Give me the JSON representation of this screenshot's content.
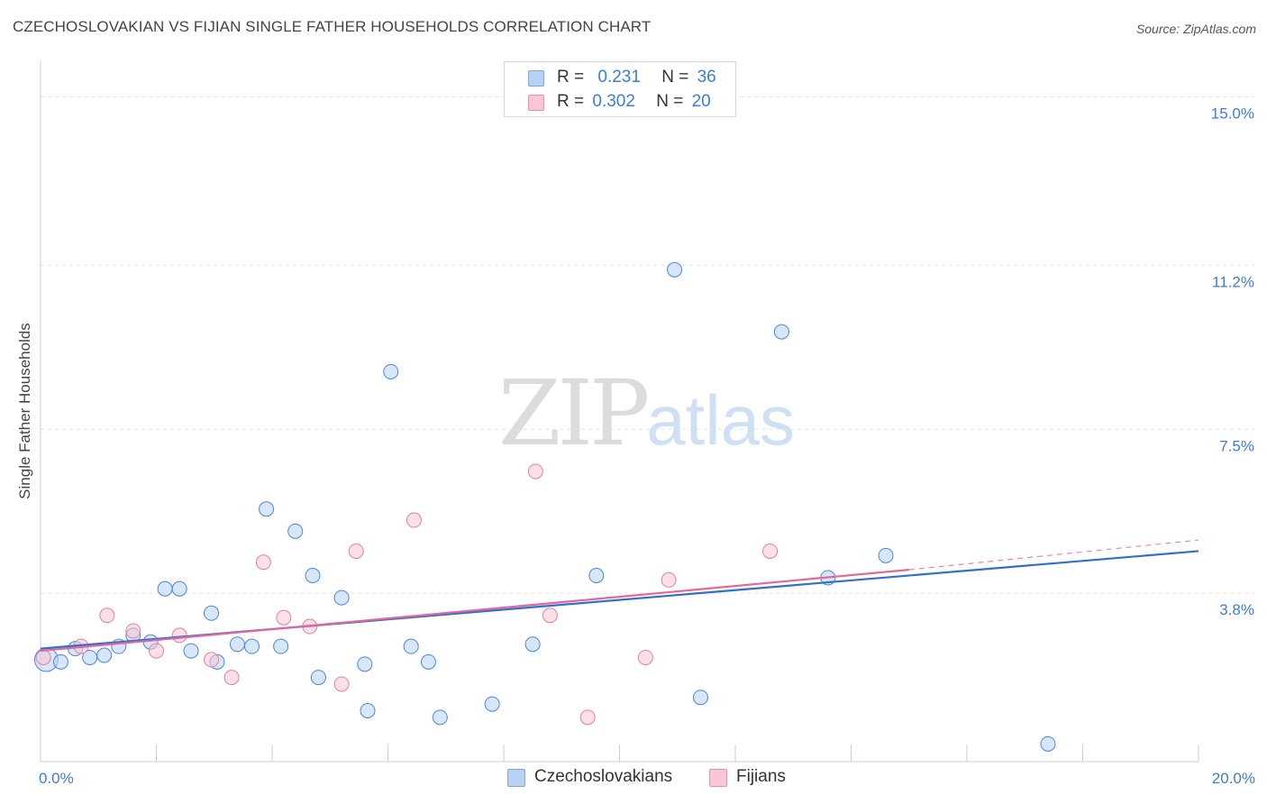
{
  "title": "CZECHOSLOVAKIAN VS FIJIAN SINGLE FATHER HOUSEHOLDS CORRELATION CHART",
  "source": "Source: ZipAtlas.com",
  "watermark": {
    "zip": "ZIP",
    "atlas": "atlas"
  },
  "legend": {
    "rows": [
      {
        "r_label": "R =",
        "r_value": "0.231",
        "n_label": "N =",
        "n_value": "36",
        "color": "#b8d2f5",
        "border": "#7aa7e0"
      },
      {
        "r_label": "R =",
        "r_value": "0.302",
        "n_label": "N =",
        "n_value": "20",
        "color": "#f9c6d6",
        "border": "#e890ab"
      }
    ]
  },
  "bottom_legend": [
    {
      "label": "Czechoslovakians",
      "color": "#b8d2f5",
      "border": "#7aa7e0"
    },
    {
      "label": "Fijians",
      "color": "#f9c6d6",
      "border": "#e890ab"
    }
  ],
  "chart_data": {
    "type": "scatter",
    "ylabel": "Single Father Households",
    "xlim": [
      0,
      20
    ],
    "ylim": [
      0,
      15.6
    ],
    "x_ticks_labels": [
      {
        "value": 0,
        "label": "0.0%"
      },
      {
        "value": 20,
        "label": "20.0%"
      }
    ],
    "y_ticks_labels": [
      {
        "value": 3.8,
        "label": "3.8%"
      },
      {
        "value": 7.5,
        "label": "7.5%"
      },
      {
        "value": 11.2,
        "label": "11.2%"
      },
      {
        "value": 15.0,
        "label": "15.0%"
      }
    ],
    "grid": true,
    "series": [
      {
        "name": "Czechoslovakians",
        "color": "#4a86d8",
        "fill": "rgba(184,210,245,0.55)",
        "trend": {
          "x": [
            0,
            20
          ],
          "y": [
            2.55,
            4.75
          ],
          "color": "#2f6fcf"
        },
        "points": [
          {
            "x": 0.1,
            "y": 2.3,
            "big": true
          },
          {
            "x": 0.35,
            "y": 2.25
          },
          {
            "x": 0.6,
            "y": 2.55
          },
          {
            "x": 0.85,
            "y": 2.35
          },
          {
            "x": 1.1,
            "y": 2.4
          },
          {
            "x": 1.35,
            "y": 2.6
          },
          {
            "x": 1.6,
            "y": 2.85
          },
          {
            "x": 1.9,
            "y": 2.7
          },
          {
            "x": 2.15,
            "y": 3.9
          },
          {
            "x": 2.4,
            "y": 3.9
          },
          {
            "x": 2.6,
            "y": 2.5
          },
          {
            "x": 2.95,
            "y": 3.35
          },
          {
            "x": 3.05,
            "y": 2.25
          },
          {
            "x": 3.4,
            "y": 2.65
          },
          {
            "x": 3.65,
            "y": 2.6
          },
          {
            "x": 3.9,
            "y": 5.7
          },
          {
            "x": 4.15,
            "y": 2.6
          },
          {
            "x": 4.4,
            "y": 5.2
          },
          {
            "x": 4.7,
            "y": 4.2
          },
          {
            "x": 4.8,
            "y": 1.9
          },
          {
            "x": 5.2,
            "y": 3.7
          },
          {
            "x": 5.6,
            "y": 2.2
          },
          {
            "x": 5.65,
            "y": 1.15
          },
          {
            "x": 6.05,
            "y": 8.8
          },
          {
            "x": 6.4,
            "y": 2.6
          },
          {
            "x": 6.7,
            "y": 2.25
          },
          {
            "x": 6.9,
            "y": 1.0
          },
          {
            "x": 7.8,
            "y": 1.3
          },
          {
            "x": 8.5,
            "y": 2.65
          },
          {
            "x": 9.6,
            "y": 4.2
          },
          {
            "x": 10.95,
            "y": 11.1
          },
          {
            "x": 11.4,
            "y": 1.45
          },
          {
            "x": 12.8,
            "y": 9.7
          },
          {
            "x": 13.6,
            "y": 4.15
          },
          {
            "x": 14.6,
            "y": 4.65
          },
          {
            "x": 17.4,
            "y": 0.4
          }
        ]
      },
      {
        "name": "Fijians",
        "color": "#e37fa0",
        "fill": "rgba(249,198,214,0.55)",
        "trend": {
          "x": [
            0,
            15
          ],
          "y": [
            2.5,
            4.33
          ],
          "color": "#e2689a"
        },
        "trend_dashed": {
          "x": [
            15,
            20
          ],
          "y": [
            4.33,
            5.0
          ]
        },
        "points": [
          {
            "x": 0.05,
            "y": 2.35
          },
          {
            "x": 0.7,
            "y": 2.6
          },
          {
            "x": 1.15,
            "y": 3.3
          },
          {
            "x": 1.6,
            "y": 2.95
          },
          {
            "x": 2.0,
            "y": 2.5
          },
          {
            "x": 2.4,
            "y": 2.85
          },
          {
            "x": 2.95,
            "y": 2.3
          },
          {
            "x": 3.3,
            "y": 1.9
          },
          {
            "x": 3.85,
            "y": 4.5
          },
          {
            "x": 4.2,
            "y": 3.25
          },
          {
            "x": 4.65,
            "y": 3.05
          },
          {
            "x": 5.2,
            "y": 1.75
          },
          {
            "x": 5.45,
            "y": 4.75
          },
          {
            "x": 6.45,
            "y": 5.45
          },
          {
            "x": 8.55,
            "y": 6.55
          },
          {
            "x": 8.8,
            "y": 3.3
          },
          {
            "x": 9.45,
            "y": 1.0
          },
          {
            "x": 10.45,
            "y": 2.35
          },
          {
            "x": 10.85,
            "y": 4.1
          },
          {
            "x": 12.6,
            "y": 4.75
          }
        ]
      }
    ]
  }
}
